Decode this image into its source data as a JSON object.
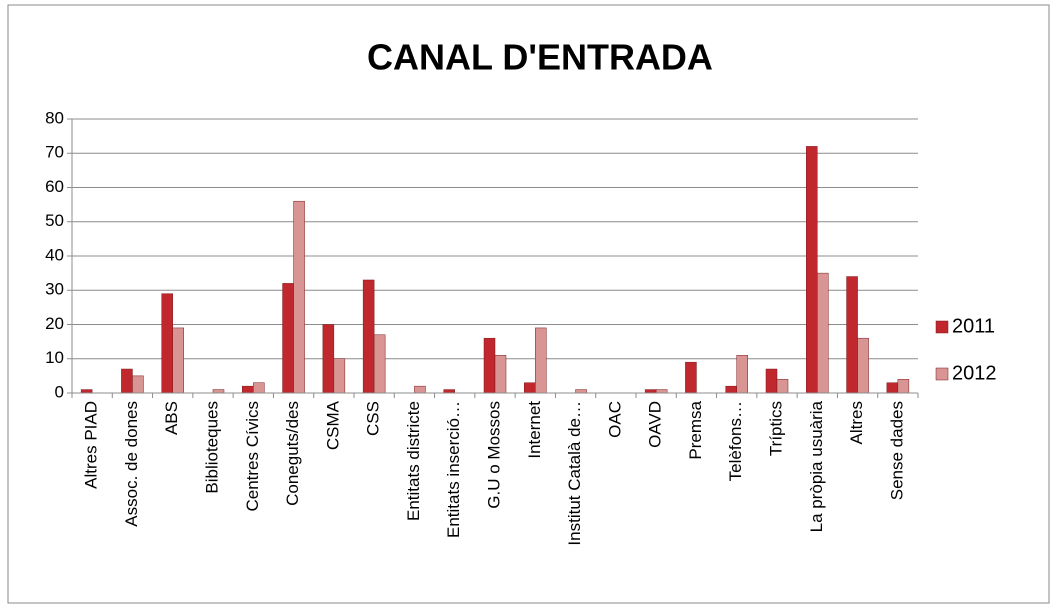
{
  "chart_data": {
    "type": "bar",
    "title": "CANAL D'ENTRADA",
    "categories": [
      "Altres PIAD",
      "Assoc. de dones",
      "ABS",
      "Biblioteques",
      "Centres Cívics",
      "Coneguts/des",
      "CSMA",
      "CSS",
      "Entitats districte",
      "Entitats inserció…",
      "G.U o Mossos",
      "Internet",
      "Institut Català de…",
      "OAC",
      "OAVD",
      "Premsa",
      "Telèfons…",
      "Tríptics",
      "La pròpia usuària",
      "Altres",
      "Sense dades"
    ],
    "series": [
      {
        "name": "2011",
        "color": "#c0282d",
        "values": [
          1,
          7,
          29,
          0,
          2,
          32,
          20,
          33,
          0,
          1,
          16,
          3,
          0,
          0,
          1,
          9,
          2,
          7,
          72,
          34,
          3
        ]
      },
      {
        "name": "2012",
        "color": "#d99594",
        "values": [
          0,
          5,
          19,
          1,
          3,
          56,
          10,
          17,
          2,
          0,
          11,
          19,
          1,
          0,
          1,
          0,
          11,
          4,
          35,
          16,
          4
        ]
      }
    ],
    "ylim": [
      0,
      80
    ],
    "yticks": [
      0,
      10,
      20,
      30,
      40,
      50,
      60,
      70,
      80
    ],
    "grid": true,
    "legend": "right"
  }
}
